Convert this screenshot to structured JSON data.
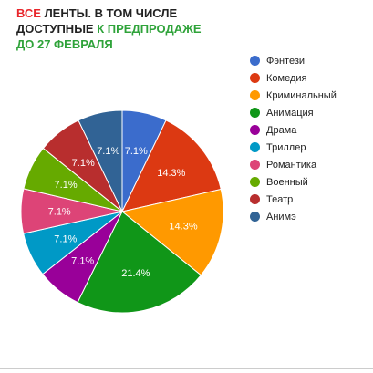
{
  "title": {
    "line1_red": "ВСЕ",
    "line1_rest": " ЛЕНТЫ.  В ТОМ ЧИСЛЕ",
    "line2_dark": "ДОСТУПНЫЕ ",
    "line2_green": "К ПРЕДПРОДАЖЕ",
    "line3_green": "ДО 27 ФЕВРАЛЯ",
    "colors": {
      "red": "#e8262b",
      "green": "#2fa33a",
      "dark": "#222222"
    }
  },
  "chart_data": {
    "type": "pie",
    "legend_position": "right",
    "slices": [
      {
        "label": "Фэнтези",
        "value": 7.1,
        "display": "7.1%",
        "color": "#3b6ccc"
      },
      {
        "label": "Комедия",
        "value": 14.3,
        "display": "14.3%",
        "color": "#dc3912"
      },
      {
        "label": "Криминальный",
        "value": 14.3,
        "display": "14.3%",
        "color": "#ff9900"
      },
      {
        "label": "Анимация",
        "value": 21.4,
        "display": "21.4%",
        "color": "#109618"
      },
      {
        "label": "Драма",
        "value": 7.1,
        "display": "7.1%",
        "color": "#990099"
      },
      {
        "label": "Триллер",
        "value": 7.1,
        "display": "7.1%",
        "color": "#0099c6"
      },
      {
        "label": "Романтика",
        "value": 7.1,
        "display": "7.1%",
        "color": "#dd4477"
      },
      {
        "label": "Военный",
        "value": 7.1,
        "display": "7.1%",
        "color": "#66aa00"
      },
      {
        "label": "Театр",
        "value": 7.1,
        "display": "7.1%",
        "color": "#b82e2e"
      },
      {
        "label": "Анимэ",
        "value": 7.1,
        "display": "7.1%",
        "color": "#316395"
      }
    ]
  }
}
